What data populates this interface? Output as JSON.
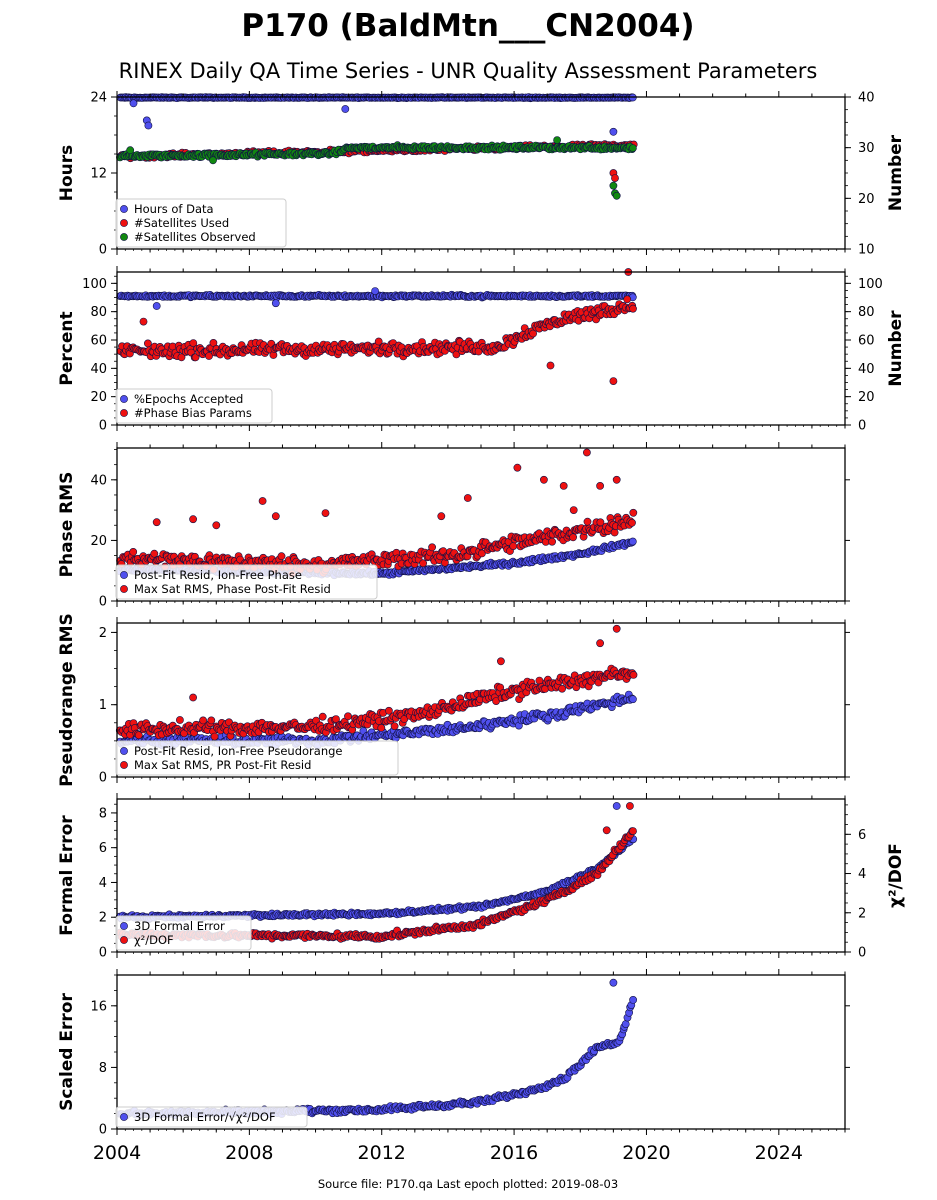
{
  "figure": {
    "title": "P170 (BaldMtn___CN2004)",
    "subtitle": "RINEX Daily QA Time Series - UNR Quality Assessment Parameters",
    "source_note": "Source file: P170.qa Last epoch plotted: 2019-08-03"
  },
  "colors": {
    "blue": "#5050ee",
    "red": "#ee1111",
    "green": "#118811",
    "navy": "#111144"
  },
  "chart_data": [
    {
      "type": "scatter",
      "ylabel": "Hours",
      "ylabel_right": "Number",
      "xlim": [
        2004,
        2026
      ],
      "ylim": [
        0,
        24
      ],
      "ylim_right": [
        10,
        40
      ],
      "yticks": [
        "0",
        "12",
        "24"
      ],
      "yticks_right": [
        "10",
        "20",
        "30",
        "40"
      ],
      "grid": false,
      "legend_position": "lower-left",
      "series": [
        {
          "name": "Hours of Data",
          "color": "blue",
          "axis": "left",
          "trend": [
            [
              2004.1,
              23.9
            ],
            [
              2019.6,
              23.9
            ]
          ],
          "spread": 0.1,
          "outliers": [
            [
              2004.5,
              23.0
            ],
            [
              2004.9,
              20.3
            ],
            [
              2004.95,
              19.5
            ],
            [
              2010.9,
              22.1
            ],
            [
              2019.0,
              18.5
            ]
          ]
        },
        {
          "name": "#Satellites Used",
          "color": "red",
          "axis": "right",
          "trend": [
            [
              2004.1,
              28.3
            ],
            [
              2019.6,
              30.5
            ]
          ],
          "spread": 0.6,
          "outliers": [
            [
              2019.0,
              25.0
            ],
            [
              2019.05,
              24.0
            ]
          ]
        },
        {
          "name": "#Satellites Observed",
          "color": "green",
          "axis": "right",
          "trend": [
            [
              2004.1,
              28.3
            ],
            [
              2008.0,
              28.6
            ],
            [
              2010.6,
              28.9
            ],
            [
              2011.0,
              30.0
            ],
            [
              2019.6,
              30.0
            ]
          ],
          "spread": 0.6,
          "outliers": [
            [
              2004.4,
              29.5
            ],
            [
              2006.9,
              27.5
            ],
            [
              2017.3,
              31.5
            ],
            [
              2019.0,
              22.5
            ],
            [
              2019.05,
              21.0
            ],
            [
              2019.1,
              20.5
            ]
          ]
        }
      ]
    },
    {
      "type": "scatter",
      "ylabel": "Percent",
      "ylabel_right": "Number",
      "xlim": [
        2004,
        2026
      ],
      "ylim": [
        0,
        108
      ],
      "ylim_right": [
        0,
        108
      ],
      "yticks": [
        "0",
        "20",
        "40",
        "60",
        "80",
        "100"
      ],
      "yticks_right": [
        "0",
        "20",
        "40",
        "60",
        "80",
        "100"
      ],
      "grid": false,
      "legend_position": "lower-left",
      "series": [
        {
          "name": "%Epochs Accepted",
          "color": "blue",
          "axis": "left",
          "trend": [
            [
              2004.1,
              91
            ],
            [
              2019.6,
              91
            ]
          ],
          "spread": 1.2,
          "outliers": [
            [
              2005.2,
              84
            ],
            [
              2008.8,
              86
            ],
            [
              2011.8,
              94.5
            ],
            [
              2019.3,
              84
            ]
          ]
        },
        {
          "name": "#Phase Bias Params",
          "color": "red",
          "axis": "right",
          "trend": [
            [
              2004.1,
              52
            ],
            [
              2015.5,
              55
            ],
            [
              2016.3,
              65
            ],
            [
              2017.5,
              75
            ],
            [
              2019.6,
              85
            ]
          ],
          "spread": 7,
          "outliers": [
            [
              2004.8,
              73
            ],
            [
              2017.1,
              42
            ],
            [
              2019.0,
              31
            ],
            [
              2019.45,
              108
            ]
          ]
        }
      ]
    },
    {
      "type": "scatter",
      "ylabel": "Phase RMS",
      "xlim": [
        2004,
        2026
      ],
      "ylim": [
        0,
        50.5
      ],
      "yticks": [
        "0",
        "20",
        "40"
      ],
      "grid": false,
      "legend_position": "lower-left",
      "series": [
        {
          "name": "Post-Fit Resid, Ion-Free Phase",
          "color": "blue",
          "axis": "left",
          "trend": [
            [
              2004.1,
              10.5
            ],
            [
              2012.0,
              9.0
            ],
            [
              2016.0,
              12.5
            ],
            [
              2018.0,
              15.5
            ],
            [
              2019.6,
              19.5
            ]
          ],
          "spread": 1,
          "outliers": []
        },
        {
          "name": "Max Sat RMS, Phase Post-Fit Resid",
          "color": "red",
          "axis": "left",
          "trend": [
            [
              2004.1,
              14
            ],
            [
              2010.0,
              12
            ],
            [
              2014.0,
              15
            ],
            [
              2017.0,
              21
            ],
            [
              2019.6,
              27
            ]
          ],
          "spread": 4,
          "outliers": [
            [
              2005.2,
              26
            ],
            [
              2006.3,
              27
            ],
            [
              2007.0,
              25
            ],
            [
              2008.4,
              33
            ],
            [
              2008.8,
              28
            ],
            [
              2010.3,
              29
            ],
            [
              2013.8,
              28
            ],
            [
              2014.6,
              34
            ],
            [
              2016.1,
              44
            ],
            [
              2016.9,
              40
            ],
            [
              2017.5,
              38
            ],
            [
              2017.8,
              30
            ],
            [
              2018.2,
              49
            ],
            [
              2018.6,
              38
            ],
            [
              2019.1,
              40
            ]
          ]
        }
      ]
    },
    {
      "type": "scatter",
      "ylabel": "Pseudorange RMS",
      "xlim": [
        2004,
        2026
      ],
      "ylim": [
        0,
        2.13
      ],
      "yticks": [
        "0",
        "1",
        "2"
      ],
      "grid": false,
      "legend_position": "lower-left",
      "series": [
        {
          "name": "Post-Fit Resid, Ion-Free Pseudorange",
          "color": "blue",
          "axis": "left",
          "trend": [
            [
              2004.1,
              0.5
            ],
            [
              2010.0,
              0.5
            ],
            [
              2014.0,
              0.65
            ],
            [
              2017.0,
              0.85
            ],
            [
              2019.6,
              1.1
            ]
          ],
          "spread": 0.1,
          "outliers": []
        },
        {
          "name": "Max Sat RMS, PR Post-Fit Resid",
          "color": "red",
          "axis": "left",
          "trend": [
            [
              2004.1,
              0.65
            ],
            [
              2010.0,
              0.7
            ],
            [
              2013.0,
              0.85
            ],
            [
              2016.0,
              1.2
            ],
            [
              2019.6,
              1.45
            ]
          ],
          "spread": 0.15,
          "outliers": [
            [
              2006.3,
              1.1
            ],
            [
              2015.6,
              1.6
            ],
            [
              2019.1,
              2.05
            ],
            [
              2018.6,
              1.85
            ]
          ]
        }
      ]
    },
    {
      "type": "scatter",
      "ylabel": "Formal Error",
      "ylabel_right": "χ²/DOF",
      "xlim": [
        2004,
        2026
      ],
      "ylim": [
        0,
        8.8
      ],
      "ylim_right": [
        0,
        7.8
      ],
      "yticks": [
        "0",
        "2",
        "4",
        "6",
        "8"
      ],
      "yticks_right": [
        "0",
        "2",
        "4",
        "6"
      ],
      "grid": false,
      "legend_position": "lower-left",
      "series": [
        {
          "name": "3D Formal Error",
          "color": "blue",
          "axis": "left",
          "trend": [
            [
              2004.1,
              2.0
            ],
            [
              2012.0,
              2.2
            ],
            [
              2015.0,
              2.6
            ],
            [
              2017.0,
              3.5
            ],
            [
              2018.5,
              4.8
            ],
            [
              2019.6,
              6.5
            ]
          ],
          "spread": 0.15,
          "outliers": [
            [
              2019.1,
              8.4
            ]
          ]
        },
        {
          "name": "χ²/DOF",
          "color": "red",
          "axis": "left",
          "trend": [
            [
              2004.1,
              1.0
            ],
            [
              2012.0,
              0.9
            ],
            [
              2015.0,
              1.6
            ],
            [
              2017.0,
              3.0
            ],
            [
              2018.5,
              4.5
            ],
            [
              2019.6,
              7.0
            ]
          ],
          "spread": 0.25,
          "outliers": [
            [
              2019.5,
              8.4
            ],
            [
              2018.8,
              7.0
            ]
          ]
        }
      ]
    },
    {
      "type": "scatter",
      "ylabel": "Scaled Error",
      "xlim": [
        2004,
        2026
      ],
      "ylim": [
        0,
        20
      ],
      "yticks": [
        "0",
        "8",
        "16"
      ],
      "grid": false,
      "legend_position": "lower-left",
      "series": [
        {
          "name": "3D Formal Error/√χ²/DOF",
          "color": "blue",
          "axis": "left",
          "trend": [
            [
              2004.1,
              2.0
            ],
            [
              2012.0,
              2.5
            ],
            [
              2015.0,
              3.5
            ],
            [
              2016.5,
              5.0
            ],
            [
              2017.5,
              6.5
            ],
            [
              2018.5,
              10.5
            ],
            [
              2019.2,
              11.5
            ],
            [
              2019.6,
              17.0
            ]
          ],
          "spread": 0.5,
          "outliers": [
            [
              2019.0,
              19.0
            ]
          ]
        }
      ]
    }
  ],
  "x_axis": {
    "xlim": [
      2004,
      2026
    ],
    "ticks": [
      "2004",
      "2008",
      "2012",
      "2016",
      "2020",
      "2024"
    ]
  }
}
